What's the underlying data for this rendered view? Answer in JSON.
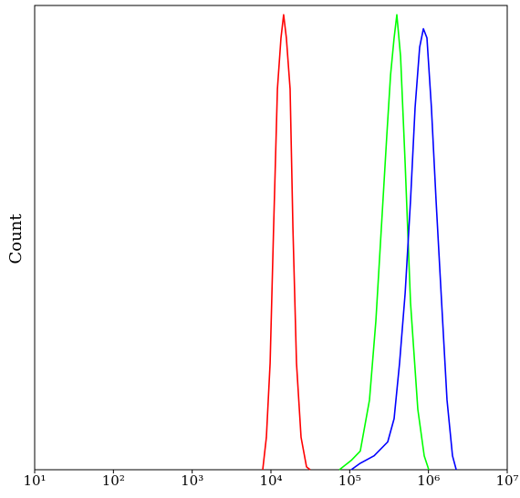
{
  "chart_data": {
    "type": "line",
    "y_label": "Count",
    "x_scale": "log",
    "grid": false,
    "xlim": [
      10,
      10000000
    ],
    "ylim": [
      0,
      100
    ],
    "xticks": [
      {
        "value": 10,
        "label": "10¹"
      },
      {
        "value": 100,
        "label": "10²"
      },
      {
        "value": 1000,
        "label": "10³"
      },
      {
        "value": 10000,
        "label": "10⁴"
      },
      {
        "value": 100000,
        "label": "10⁵"
      },
      {
        "value": 1000000,
        "label": "10⁶"
      },
      {
        "value": 10000000,
        "label": "10⁷"
      }
    ],
    "series": [
      {
        "color": "#ff0000",
        "x": [
          7870,
          8750,
          9750,
          10800,
          12100,
          13400,
          14500,
          15700,
          17500,
          19000,
          21100,
          24100,
          28300,
          31500
        ],
        "values": [
          0,
          7,
          23,
          52,
          82,
          93,
          98,
          93,
          82,
          52,
          23,
          7,
          0.6,
          0
        ]
      },
      {
        "color": "#00ff00",
        "x": [
          74000,
          104500,
          136000,
          178000,
          215000,
          252000,
          296000,
          330000,
          366000,
          397000,
          442000,
          505000,
          592000,
          733000,
          883000,
          1010000
        ],
        "values": [
          0,
          2,
          4,
          15,
          32,
          52,
          72,
          85,
          93,
          98,
          89,
          66,
          36,
          13,
          3,
          0
        ]
      },
      {
        "color": "#0000ff",
        "x": [
          104500,
          136000,
          204000,
          304000,
          366000,
          430000,
          505000,
          592000,
          676000,
          773000,
          861000,
          957000,
          1090000,
          1250000,
          1470000,
          1720000,
          2020000,
          2250000
        ],
        "values": [
          0,
          1.4,
          3,
          6,
          11,
          23,
          38,
          58,
          78,
          91,
          95,
          93,
          78,
          58,
          36,
          15,
          3,
          0
        ]
      }
    ]
  }
}
